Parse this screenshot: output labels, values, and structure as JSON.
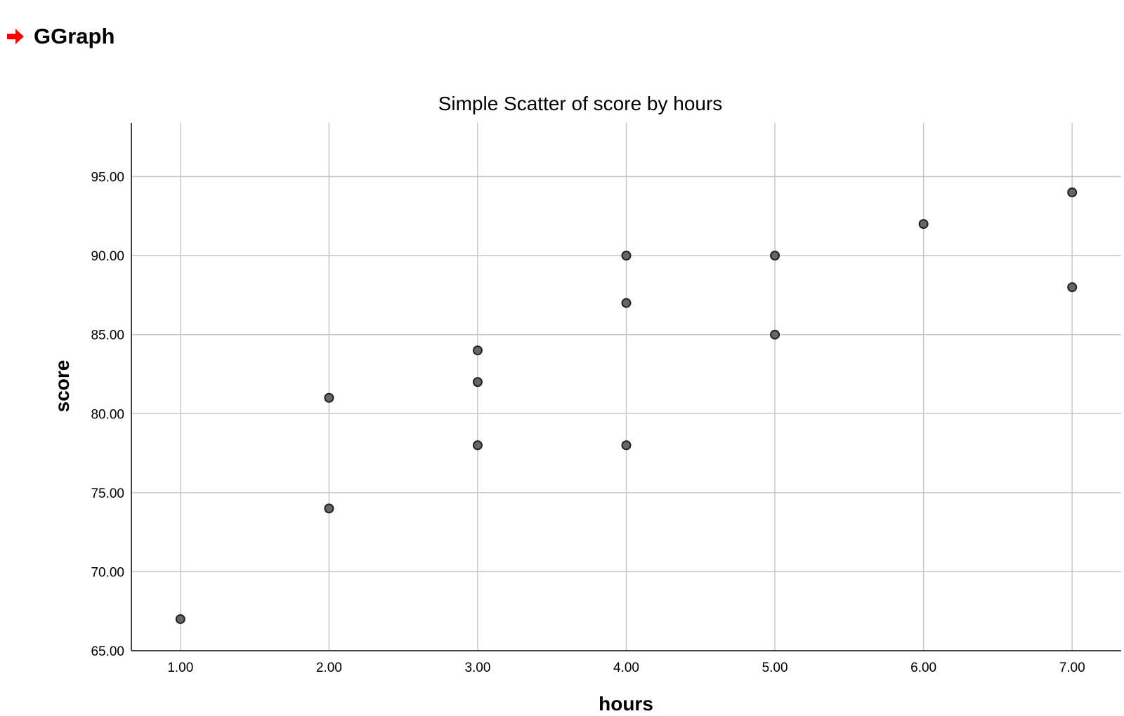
{
  "header": {
    "icon": "red-arrow-icon",
    "icon_color": "#ff0000",
    "title": "GGraph"
  },
  "chart_data": {
    "type": "scatter",
    "title": "Simple Scatter of score by hours",
    "xlabel": "hours",
    "ylabel": "score",
    "xlim": [
      0.67,
      7.33
    ],
    "ylim": [
      65,
      98.4
    ],
    "xticks": [
      1,
      2,
      3,
      4,
      5,
      6,
      7
    ],
    "xtick_labels": [
      "1.00",
      "2.00",
      "3.00",
      "4.00",
      "5.00",
      "6.00",
      "7.00"
    ],
    "yticks": [
      65,
      70,
      75,
      80,
      85,
      90,
      95
    ],
    "ytick_labels": [
      "65.00",
      "70.00",
      "75.00",
      "80.00",
      "85.00",
      "90.00",
      "95.00"
    ],
    "grid": true,
    "legend": false,
    "marker_color": "#666666",
    "marker_edge_color": "#222222",
    "points": [
      {
        "x": 1,
        "y": 67
      },
      {
        "x": 2,
        "y": 74
      },
      {
        "x": 2,
        "y": 81
      },
      {
        "x": 3,
        "y": 78
      },
      {
        "x": 3,
        "y": 82
      },
      {
        "x": 3,
        "y": 84
      },
      {
        "x": 4,
        "y": 78
      },
      {
        "x": 4,
        "y": 87
      },
      {
        "x": 4,
        "y": 90
      },
      {
        "x": 5,
        "y": 85
      },
      {
        "x": 5,
        "y": 90
      },
      {
        "x": 6,
        "y": 92
      },
      {
        "x": 7,
        "y": 88
      },
      {
        "x": 7,
        "y": 94
      }
    ]
  }
}
